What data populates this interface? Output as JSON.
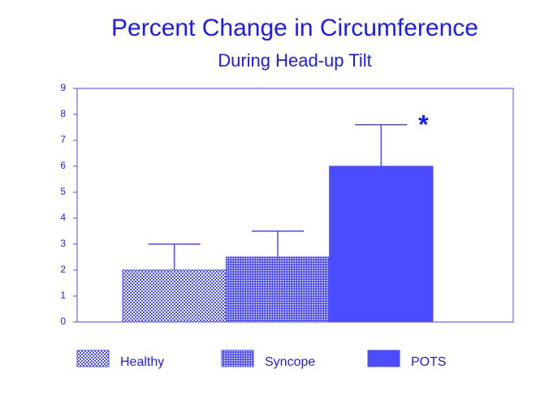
{
  "chart_data": {
    "type": "bar",
    "title": "Percent Change in Circumference",
    "subtitle": "During Head-up Tilt",
    "series": [
      {
        "name": "Healthy",
        "color": "#4b4bff",
        "pattern": "checker",
        "values": [
          2
        ],
        "errors": [
          1
        ]
      },
      {
        "name": "Syncope",
        "color": "#4b4bff",
        "pattern": "hatch",
        "values": [
          2.5
        ],
        "errors": [
          1
        ]
      },
      {
        "name": "POTS",
        "color": "#4b4bff",
        "pattern": "solid",
        "values": [
          6
        ],
        "errors": [
          1.6
        ],
        "annotation": "*"
      }
    ],
    "ylim": [
      0,
      9
    ],
    "yticks": [
      0,
      1,
      2,
      3,
      4,
      5,
      6,
      7,
      8,
      9
    ],
    "grid": false,
    "legend": "bottom"
  }
}
